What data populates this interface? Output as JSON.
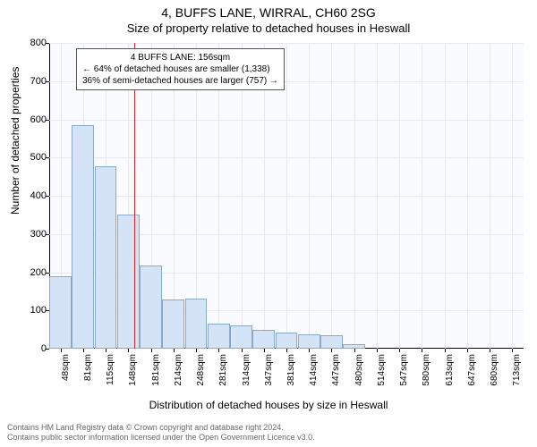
{
  "title": "4, BUFFS LANE, WIRRAL, CH60 2SG",
  "subtitle": "Size of property relative to detached houses in Heswall",
  "ylabel": "Number of detached properties",
  "xlabel": "Distribution of detached houses by size in Heswall",
  "chart": {
    "type": "histogram",
    "ylim": [
      0,
      800
    ],
    "ytick_step": 100,
    "background_color": "#fafbff",
    "bar_fill": "#d4e3f5",
    "bar_stroke": "#8aa8c8",
    "grid_color": "#e8e8f0",
    "refline_color": "#d22828",
    "refline_x_index": 3.25,
    "categories": [
      "48sqm",
      "81sqm",
      "115sqm",
      "148sqm",
      "181sqm",
      "214sqm",
      "248sqm",
      "281sqm",
      "314sqm",
      "347sqm",
      "381sqm",
      "414sqm",
      "447sqm",
      "480sqm",
      "514sqm",
      "547sqm",
      "580sqm",
      "613sqm",
      "647sqm",
      "680sqm",
      "713sqm"
    ],
    "values": [
      190,
      585,
      478,
      350,
      218,
      128,
      130,
      65,
      62,
      48,
      42,
      38,
      35,
      12,
      0,
      0,
      0,
      0,
      0,
      0,
      0
    ]
  },
  "annotation": {
    "line1": "4 BUFFS LANE: 156sqm",
    "line2": "← 64% of detached houses are smaller (1,338)",
    "line3": "36% of semi-detached houses are larger (757) →"
  },
  "footer": {
    "line1": "Contains HM Land Registry data © Crown copyright and database right 2024.",
    "line2": "Contains public sector information licensed under the Open Government Licence v3.0."
  }
}
